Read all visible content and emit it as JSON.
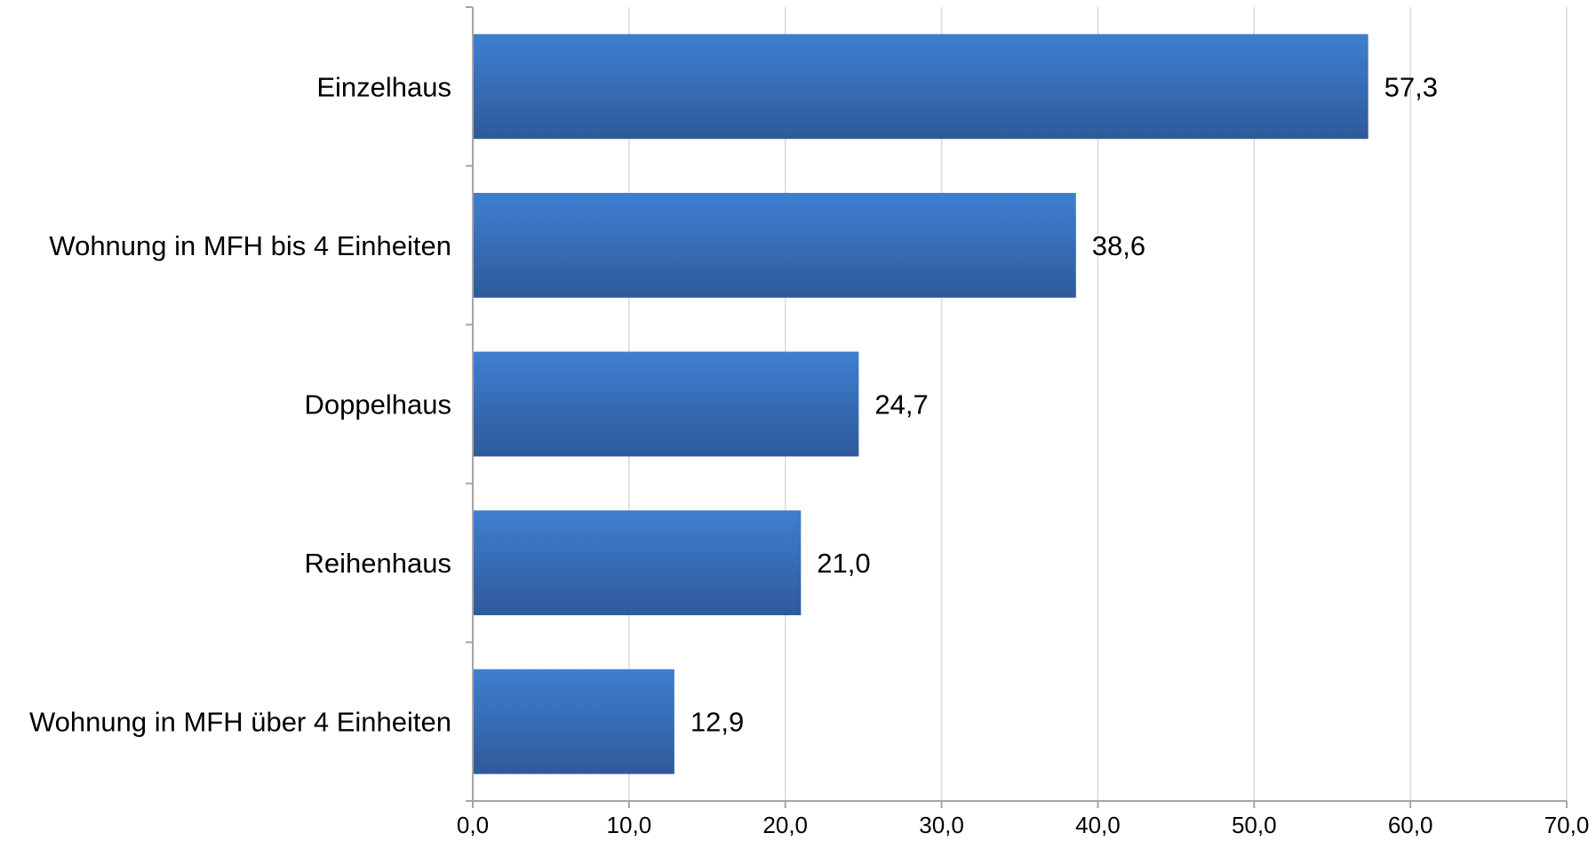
{
  "chart_data": {
    "type": "bar",
    "orientation": "horizontal",
    "categories": [
      "Einzelhaus",
      "Wohnung in MFH bis 4 Einheiten",
      "Doppelhaus",
      "Reihenhaus",
      "Wohnung in MFH über 4 Einheiten"
    ],
    "values": [
      57.3,
      38.6,
      24.7,
      21.0,
      12.9
    ],
    "value_labels": [
      "57,3",
      "38,6",
      "24,7",
      "21,0",
      "12,9"
    ],
    "xlim": [
      0,
      70
    ],
    "x_ticks": [
      0,
      10,
      20,
      30,
      40,
      50,
      60,
      70
    ],
    "x_tick_labels": [
      "0,0",
      "10,0",
      "20,0",
      "30,0",
      "40,0",
      "50,0",
      "60,0",
      "70,0"
    ],
    "grid": "vertical",
    "legend": "none",
    "colors": {
      "bar_top": "#3f7fd1",
      "bar_bottom": "#2e5a9a",
      "grid": "#d9d9d9",
      "axis": "#a6a6a6"
    }
  }
}
